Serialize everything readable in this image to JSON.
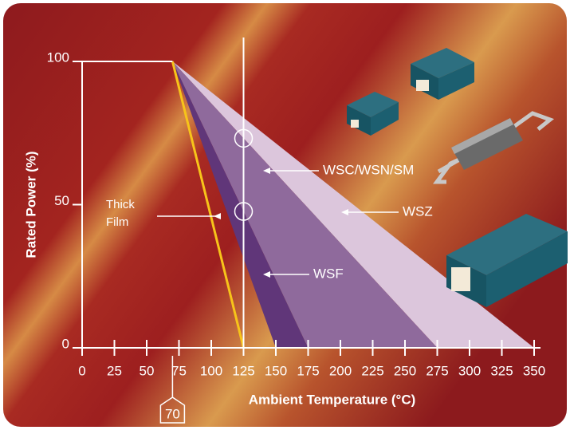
{
  "chart_data": {
    "type": "derating",
    "xlabel": "Ambient Temperature (°C)",
    "ylabel": "Rated Power (%)",
    "xlim": [
      0,
      350
    ],
    "ylim": [
      0,
      100
    ],
    "xticks": [
      0,
      25,
      50,
      75,
      100,
      125,
      150,
      175,
      200,
      225,
      250,
      275,
      300,
      325,
      350
    ],
    "yticks": [
      0,
      50,
      100
    ],
    "callout": 70,
    "series": [
      {
        "name": "WSZ",
        "color": "#dcc6dc",
        "x": [
          70,
          275,
          350
        ],
        "values": [
          100,
          0,
          0
        ]
      },
      {
        "name": "WSC/WSN/SM",
        "color": "#8f6a9c",
        "x": [
          70,
          175,
          275
        ],
        "values": [
          100,
          0,
          0
        ]
      },
      {
        "name": "WSF",
        "color": "#603679",
        "x": [
          70,
          150,
          175
        ],
        "values": [
          100,
          0,
          0
        ]
      },
      {
        "name": "Thick Film",
        "color": "#f7c41a",
        "x": [
          70,
          125
        ],
        "values": [
          100,
          0
        ]
      }
    ]
  }
}
